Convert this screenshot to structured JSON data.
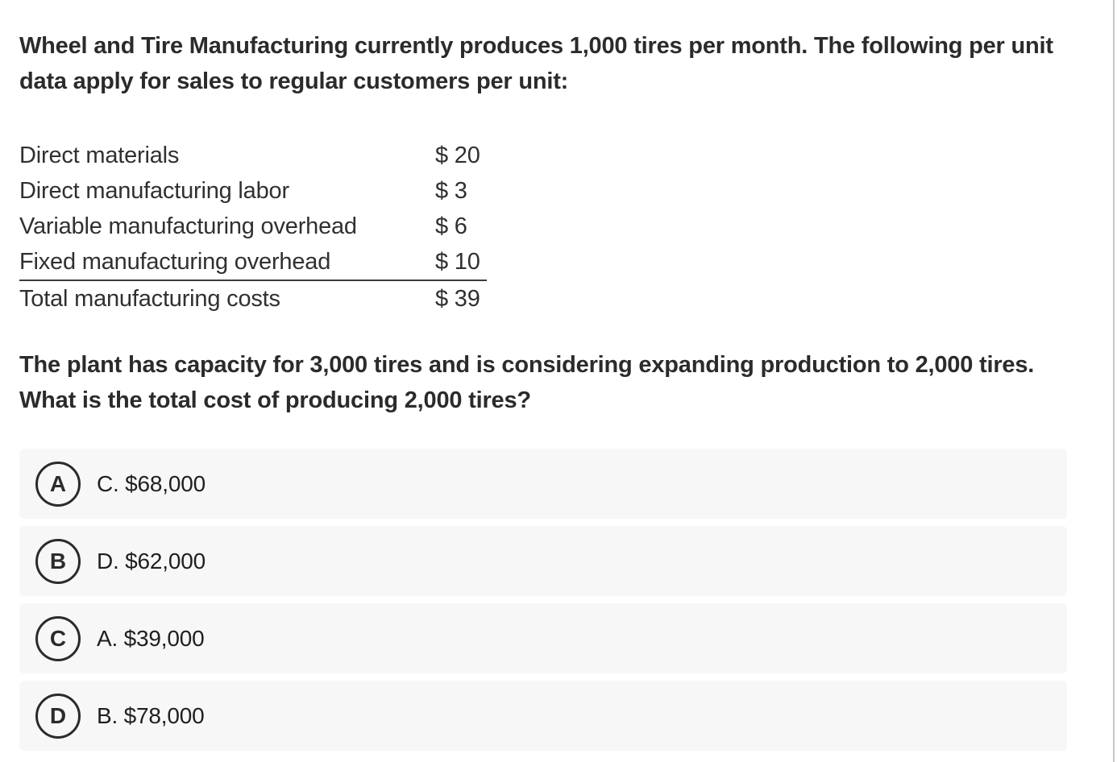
{
  "question": {
    "intro": "Wheel and Tire Manufacturing currently produces 1,000 tires per month. The following per unit data apply for sales to regular customers per unit:",
    "prompt": "The plant has capacity for 3,000 tires and is considering expanding production to 2,000 tires. What is the total cost of producing 2,000 tires?"
  },
  "cost_table": {
    "rows": [
      {
        "label": "Direct materials",
        "amount": "$ 20"
      },
      {
        "label": "Direct manufacturing labor",
        "amount": "$ 3"
      },
      {
        "label": "Variable manufacturing overhead",
        "amount": "$ 6"
      },
      {
        "label": "Fixed manufacturing overhead",
        "amount": "$ 10"
      },
      {
        "label": "Total manufacturing costs",
        "amount": "$ 39"
      }
    ]
  },
  "options": [
    {
      "letter": "A",
      "text": "C. $68,000"
    },
    {
      "letter": "B",
      "text": "D. $62,000"
    },
    {
      "letter": "C",
      "text": "A. $39,000"
    },
    {
      "letter": "D",
      "text": "B. $78,000"
    }
  ],
  "colors": {
    "page_background": "#ffffff",
    "card_background": "#f7f7f7",
    "text_primary": "#2b2b2b",
    "badge_border": "#2b2b2b",
    "underline": "#3c3c3c",
    "right_edge_line": "#c7c7c7"
  }
}
